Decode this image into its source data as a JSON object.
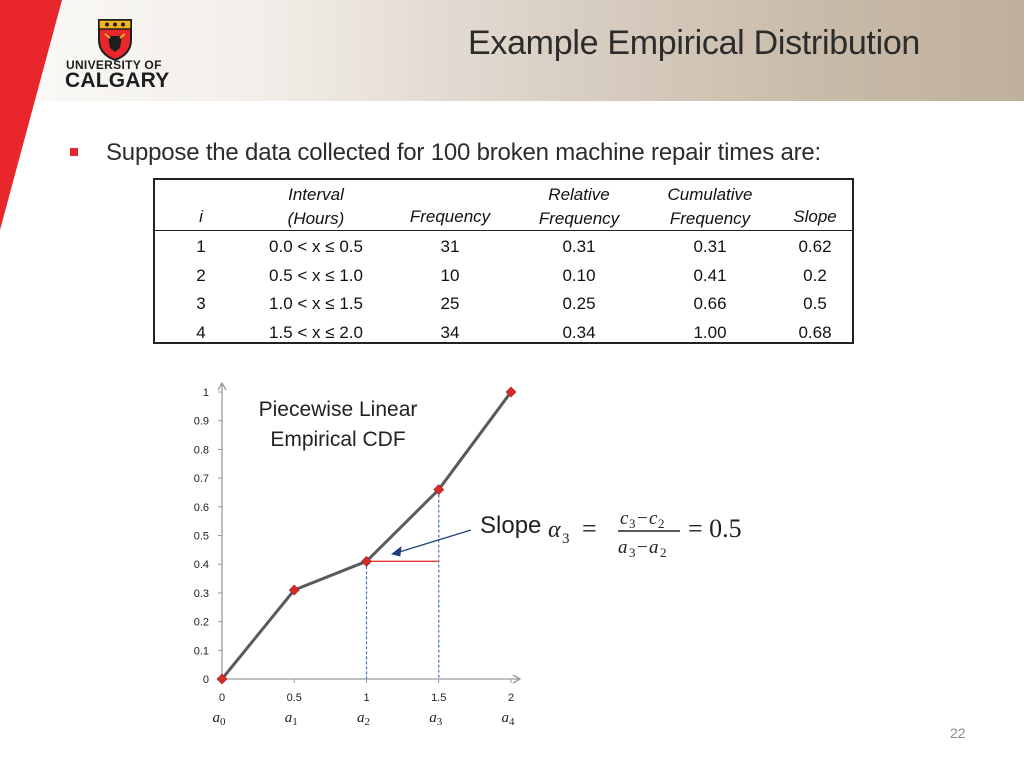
{
  "header": {
    "logo_line1": "UNIVERSITY OF",
    "logo_line2": "CALGARY",
    "title": "Example Empirical Distribution"
  },
  "intro": "Suppose the data collected for 100 broken machine repair times are:",
  "table": {
    "headers": [
      {
        "line1": "",
        "line2": "i"
      },
      {
        "line1": "Interval",
        "line2": "(Hours)"
      },
      {
        "line1": "",
        "line2": "Frequency"
      },
      {
        "line1": "Relative",
        "line2": "Frequency"
      },
      {
        "line1": "Cumulative",
        "line2": "Frequency"
      },
      {
        "line1": "",
        "line2": "Slope"
      }
    ],
    "rows": [
      [
        "1",
        "0.0 < x ≤ 0.5",
        "31",
        "0.31",
        "0.31",
        "0.62"
      ],
      [
        "2",
        "0.5 < x ≤ 1.0",
        "10",
        "0.10",
        "0.41",
        "0.2"
      ],
      [
        "3",
        "1.0 < x ≤ 1.5",
        "25",
        "0.25",
        "0.66",
        "0.5"
      ],
      [
        "4",
        "1.5 < x ≤ 2.0",
        "34",
        "0.34",
        "1.00",
        "0.68"
      ]
    ]
  },
  "chart_data": {
    "type": "line",
    "title_line1": "Piecewise Linear",
    "title_line2": "Empirical CDF",
    "x": [
      0,
      0.5,
      1,
      1.5,
      2
    ],
    "y": [
      0,
      0.31,
      0.41,
      0.66,
      1.0
    ],
    "xlim": [
      0,
      2
    ],
    "ylim": [
      0,
      1
    ],
    "x_ticks": [
      "0",
      "0.5",
      "1",
      "1.5",
      "2"
    ],
    "y_ticks": [
      "0",
      "0.1",
      "0.2",
      "0.3",
      "0.4",
      "0.5",
      "0.6",
      "0.7",
      "0.8",
      "0.9",
      "1"
    ],
    "x_sublabels": [
      "a0",
      "a1",
      "a2",
      "a3",
      "a4"
    ],
    "line_color": "#5a5a5a",
    "marker_color": "#d42b2b",
    "highlight_color": "#e23b3b",
    "guide_color": "#4a72c4"
  },
  "annotation": {
    "slope_label": "Slope",
    "equation_result": "= 0.5"
  },
  "page_number": "22",
  "colors": {
    "brand_red": "#e8262b",
    "gold": "#f2b51f"
  }
}
